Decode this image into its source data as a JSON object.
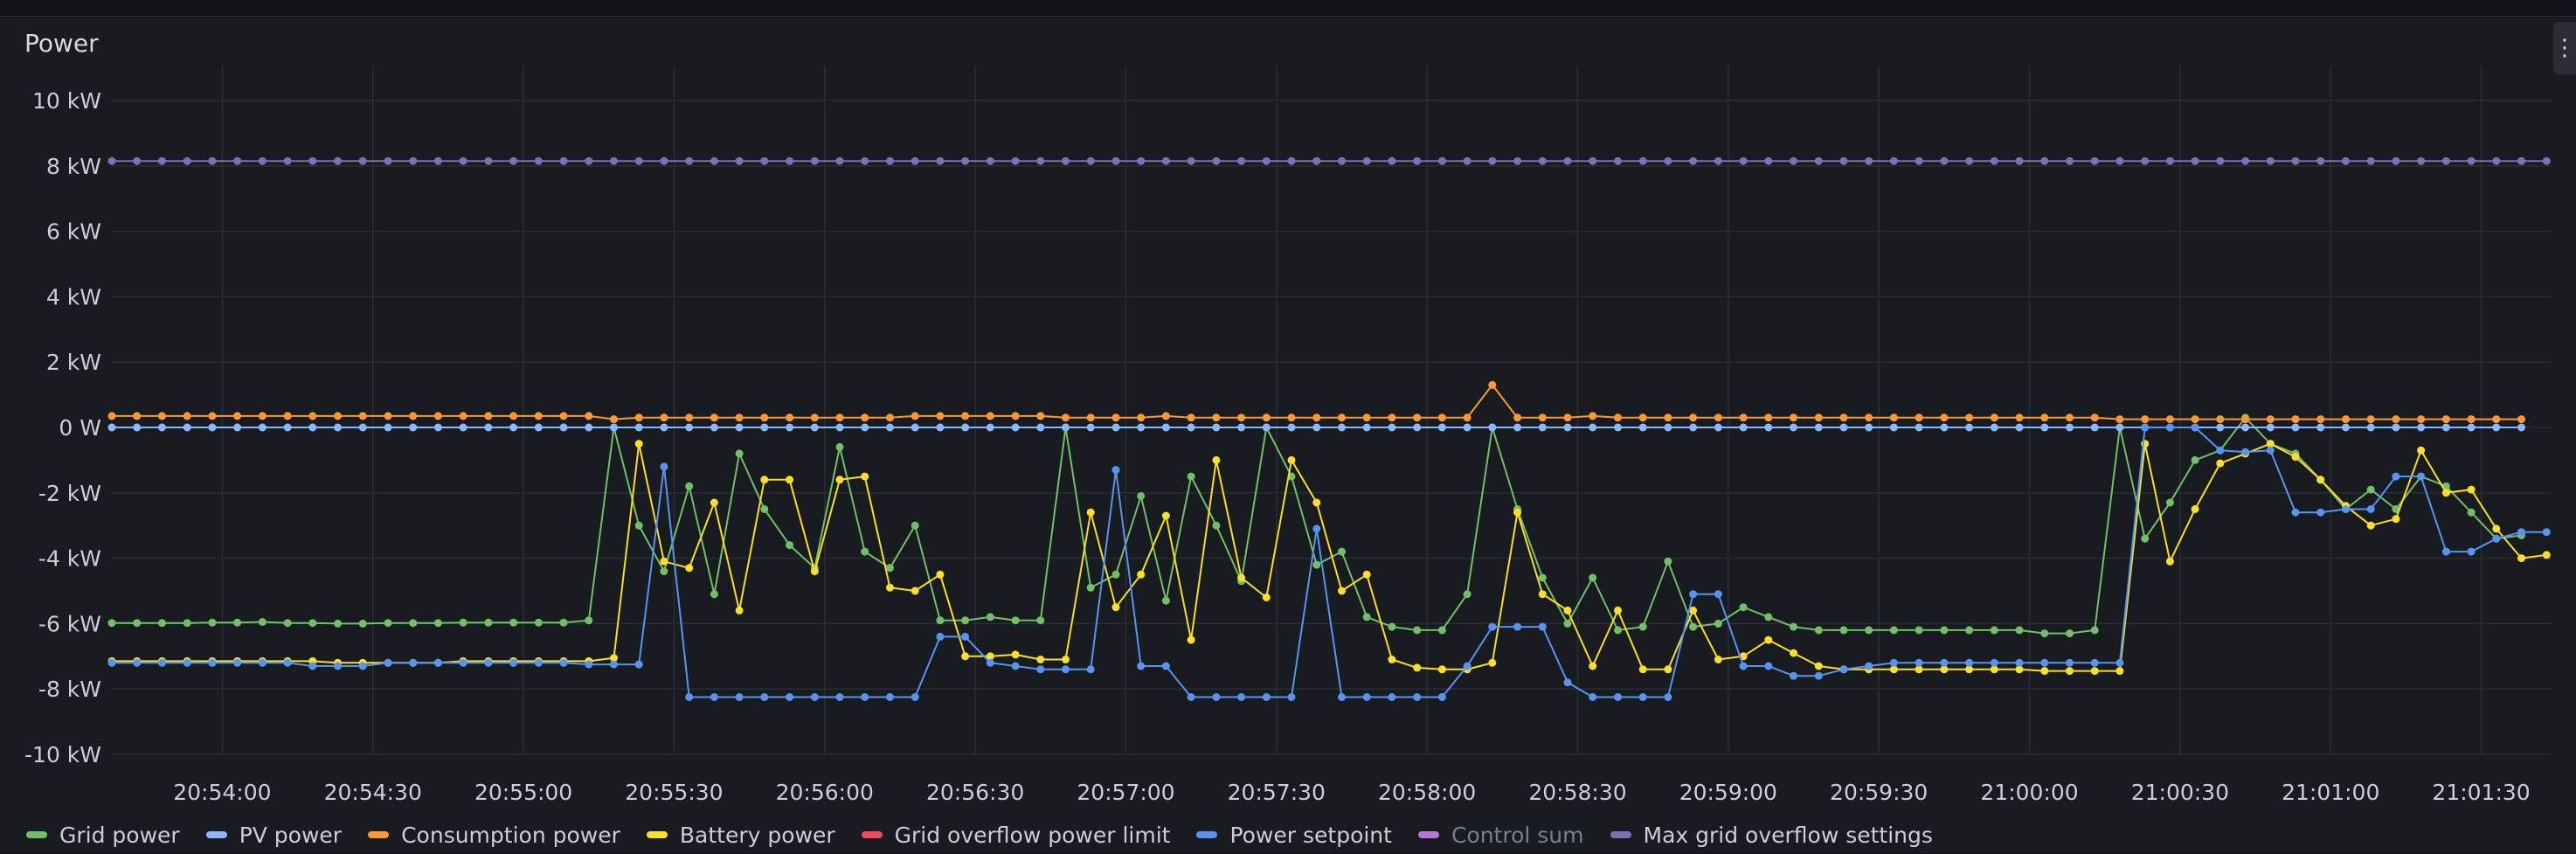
{
  "panel": {
    "title": "Power",
    "menu_icon": "vertical-ellipsis-icon"
  },
  "colors": {
    "background": "#181b1f",
    "grid": "#2a2d33",
    "tick_text": "#ccccdc"
  },
  "chart_data": {
    "type": "line",
    "title": "Power",
    "xlabel": "",
    "ylabel": "",
    "y_unit": "kW",
    "ylim": [
      -10,
      10
    ],
    "y_ticks": [
      10,
      8,
      6,
      4,
      2,
      0,
      -2,
      -4,
      -6,
      -8,
      -10
    ],
    "y_tick_labels": [
      "10 kW",
      "8 kW",
      "6 kW",
      "4 kW",
      "2 kW",
      "0 W",
      "-2 kW",
      "-4 kW",
      "-6 kW",
      "-8 kW",
      "-10 kW"
    ],
    "xlim": [
      "20:53:38",
      "21:01:44"
    ],
    "x_ticks": [
      "20:54:00",
      "20:54:30",
      "20:55:00",
      "20:55:30",
      "20:56:00",
      "20:56:30",
      "20:57:00",
      "20:57:30",
      "20:58:00",
      "20:58:30",
      "20:59:00",
      "20:59:30",
      "21:00:00",
      "21:00:30",
      "21:01:00",
      "21:01:30"
    ],
    "x_tick_labels": [
      "20:54:00",
      "20:54:30",
      "20:55:00",
      "20:55:30",
      "20:56:00",
      "20:56:30",
      "20:57:00",
      "20:57:30",
      "20:58:00",
      "20:58:30",
      "20:59:00",
      "20:59:30",
      "21:00:00",
      "21:00:30",
      "21:01:00",
      "21:01:30"
    ],
    "x_start": "20:53:38",
    "x_step_seconds": 5,
    "grid": true,
    "legend_position": "bottom",
    "series": [
      {
        "name": "Grid power",
        "color": "#73bf69",
        "visible": true,
        "values": [
          -5.98,
          -5.98,
          -5.98,
          -5.98,
          -5.97,
          -5.97,
          -5.95,
          -5.98,
          -5.98,
          -6.0,
          -6.0,
          -5.98,
          -5.98,
          -5.98,
          -5.97,
          -5.97,
          -5.97,
          -5.97,
          -5.97,
          -5.9,
          0.0,
          -3.0,
          -4.4,
          -1.8,
          -5.1,
          -0.8,
          -2.5,
          -3.6,
          -4.3,
          -0.6,
          -3.8,
          -4.3,
          -3.0,
          -5.9,
          -5.9,
          -5.8,
          -5.9,
          -5.9,
          0.0,
          -4.9,
          -4.5,
          -2.1,
          -5.3,
          -1.5,
          -3.0,
          -4.7,
          0.0,
          -1.5,
          -4.2,
          -3.8,
          -5.8,
          -6.1,
          -6.2,
          -6.2,
          -5.1,
          0.0,
          -2.5,
          -4.6,
          -6.0,
          -4.6,
          -6.2,
          -6.1,
          -4.1,
          -6.1,
          -6.0,
          -5.5,
          -5.8,
          -6.1,
          -6.2,
          -6.2,
          -6.2,
          -6.2,
          -6.2,
          -6.2,
          -6.2,
          -6.2,
          -6.2,
          -6.3,
          -6.3,
          -6.2,
          0.0,
          -3.4,
          -2.3,
          -1.0,
          -0.7,
          0.3,
          -0.5,
          -0.8,
          -1.6,
          -2.5,
          -1.9,
          -2.5,
          -1.5,
          -1.8,
          -2.6,
          -3.4,
          -3.3
        ]
      },
      {
        "name": "PV power",
        "color": "#8ab8ff",
        "visible": true,
        "values": [
          0.0,
          0.0,
          0.0,
          0.0,
          0.0,
          0.0,
          0.0,
          0.0,
          0.0,
          0.0,
          0.0,
          0.0,
          0.0,
          0.0,
          0.0,
          0.0,
          0.0,
          0.0,
          0.0,
          0.0,
          0.0,
          0.0,
          0.0,
          0.0,
          0.0,
          0.0,
          0.0,
          0.0,
          0.0,
          0.0,
          0.0,
          0.0,
          0.0,
          0.0,
          0.0,
          0.0,
          0.0,
          0.0,
          0.0,
          0.0,
          0.0,
          0.0,
          0.0,
          0.0,
          0.0,
          0.0,
          0.0,
          0.0,
          0.0,
          0.0,
          0.0,
          0.0,
          0.0,
          0.0,
          0.0,
          0.0,
          0.0,
          0.0,
          0.0,
          0.0,
          0.0,
          0.0,
          0.0,
          0.0,
          0.0,
          0.0,
          0.0,
          0.0,
          0.0,
          0.0,
          0.0,
          0.0,
          0.0,
          0.0,
          0.0,
          0.0,
          0.0,
          0.0,
          0.0,
          0.0,
          0.0,
          0.0,
          0.0,
          0.0,
          0.0,
          0.0,
          0.0,
          0.0,
          0.0,
          0.0,
          0.0,
          0.0,
          0.0,
          0.0,
          0.0,
          0.0,
          0.0
        ]
      },
      {
        "name": "Consumption power",
        "color": "#ff9830",
        "visible": true,
        "values": [
          0.35,
          0.35,
          0.35,
          0.35,
          0.35,
          0.35,
          0.35,
          0.35,
          0.35,
          0.35,
          0.35,
          0.35,
          0.35,
          0.35,
          0.35,
          0.35,
          0.35,
          0.35,
          0.35,
          0.35,
          0.25,
          0.3,
          0.3,
          0.3,
          0.3,
          0.3,
          0.3,
          0.3,
          0.3,
          0.3,
          0.3,
          0.3,
          0.35,
          0.35,
          0.35,
          0.35,
          0.35,
          0.35,
          0.3,
          0.3,
          0.3,
          0.3,
          0.35,
          0.3,
          0.3,
          0.3,
          0.3,
          0.3,
          0.3,
          0.3,
          0.3,
          0.3,
          0.3,
          0.3,
          0.3,
          1.3,
          0.3,
          0.3,
          0.3,
          0.35,
          0.3,
          0.3,
          0.3,
          0.3,
          0.3,
          0.3,
          0.3,
          0.3,
          0.3,
          0.3,
          0.3,
          0.3,
          0.3,
          0.3,
          0.3,
          0.3,
          0.3,
          0.3,
          0.3,
          0.3,
          0.25,
          0.25,
          0.25,
          0.25,
          0.25,
          0.25,
          0.25,
          0.25,
          0.25,
          0.25,
          0.25,
          0.25,
          0.25,
          0.25,
          0.25,
          0.25,
          0.25
        ]
      },
      {
        "name": "Battery power",
        "color": "#fade2a",
        "visible": true,
        "values": [
          -7.15,
          -7.15,
          -7.15,
          -7.15,
          -7.15,
          -7.15,
          -7.15,
          -7.15,
          -7.15,
          -7.2,
          -7.2,
          -7.2,
          -7.2,
          -7.2,
          -7.15,
          -7.15,
          -7.15,
          -7.15,
          -7.15,
          -7.15,
          -7.05,
          -0.5,
          -4.1,
          -4.3,
          -2.3,
          -5.6,
          -1.6,
          -1.6,
          -4.4,
          -1.6,
          -1.5,
          -4.9,
          -5.0,
          -4.5,
          -7.0,
          -7.0,
          -6.95,
          -7.1,
          -7.1,
          -2.6,
          -5.5,
          -4.5,
          -2.7,
          -6.5,
          -1.0,
          -4.6,
          -5.2,
          -1.0,
          -2.3,
          -5.0,
          -4.5,
          -7.1,
          -7.35,
          -7.4,
          -7.4,
          -7.2,
          -2.6,
          -5.1,
          -5.6,
          -7.3,
          -5.6,
          -7.4,
          -7.4,
          -5.6,
          -7.1,
          -7.0,
          -6.5,
          -6.9,
          -7.3,
          -7.4,
          -7.4,
          -7.4,
          -7.4,
          -7.4,
          -7.4,
          -7.4,
          -7.4,
          -7.45,
          -7.45,
          -7.45,
          -7.45,
          -0.5,
          -4.1,
          -2.5,
          -1.1,
          -0.8,
          -0.5,
          -0.9,
          -1.6,
          -2.4,
          -3.0,
          -2.8,
          -0.7,
          -2.0,
          -1.9,
          -3.1,
          -4.0,
          -3.9
        ]
      },
      {
        "name": "Grid overflow power limit",
        "color": "#f2495c",
        "visible": false,
        "values": []
      },
      {
        "name": "Power setpoint",
        "color": "#5794f2",
        "visible": true,
        "values": [
          -7.2,
          -7.2,
          -7.2,
          -7.2,
          -7.2,
          -7.2,
          -7.2,
          -7.2,
          -7.3,
          -7.3,
          -7.3,
          -7.2,
          -7.2,
          -7.2,
          -7.2,
          -7.2,
          -7.2,
          -7.2,
          -7.2,
          -7.25,
          -7.25,
          -7.25,
          -1.2,
          -8.25,
          -8.25,
          -8.25,
          -8.25,
          -8.25,
          -8.25,
          -8.25,
          -8.25,
          -8.25,
          -8.25,
          -6.4,
          -6.4,
          -7.2,
          -7.3,
          -7.4,
          -7.4,
          -7.4,
          -1.3,
          -7.3,
          -7.3,
          -8.25,
          -8.25,
          -8.25,
          -8.25,
          -8.25,
          -3.1,
          -8.25,
          -8.25,
          -8.25,
          -8.25,
          -8.25,
          -7.3,
          -6.1,
          -6.1,
          -6.1,
          -7.8,
          -8.25,
          -8.25,
          -8.25,
          -8.25,
          -5.1,
          -5.1,
          -7.3,
          -7.3,
          -7.6,
          -7.6,
          -7.4,
          -7.3,
          -7.2,
          -7.2,
          -7.2,
          -7.2,
          -7.2,
          -7.2,
          -7.2,
          -7.2,
          -7.2,
          -7.2,
          0.0,
          0.0,
          0.0,
          -0.7,
          -0.75,
          -0.7,
          -2.6,
          -2.6,
          -2.5,
          -2.5,
          -1.5,
          -1.5,
          -3.8,
          -3.8,
          -3.4,
          -3.2,
          -3.2
        ]
      },
      {
        "name": "Control sum",
        "color": "#b877d9",
        "visible": false,
        "values": []
      },
      {
        "name": "Max grid overflow settings",
        "color": "#806eb7",
        "visible": true,
        "values": [
          8.15,
          8.15,
          8.15,
          8.15,
          8.15,
          8.15,
          8.15,
          8.15,
          8.15,
          8.15,
          8.15,
          8.15,
          8.15,
          8.15,
          8.15,
          8.15,
          8.15,
          8.15,
          8.15,
          8.15,
          8.15,
          8.15,
          8.15,
          8.15,
          8.15,
          8.15,
          8.15,
          8.15,
          8.15,
          8.15,
          8.15,
          8.15,
          8.15,
          8.15,
          8.15,
          8.15,
          8.15,
          8.15,
          8.15,
          8.15,
          8.15,
          8.15,
          8.15,
          8.15,
          8.15,
          8.15,
          8.15,
          8.15,
          8.15,
          8.15,
          8.15,
          8.15,
          8.15,
          8.15,
          8.15,
          8.15,
          8.15,
          8.15,
          8.15,
          8.15,
          8.15,
          8.15,
          8.15,
          8.15,
          8.15,
          8.15,
          8.15,
          8.15,
          8.15,
          8.15,
          8.15,
          8.15,
          8.15,
          8.15,
          8.15,
          8.15,
          8.15,
          8.15,
          8.15,
          8.15,
          8.15,
          8.15,
          8.15,
          8.15,
          8.15,
          8.15,
          8.15,
          8.15,
          8.15,
          8.15,
          8.15,
          8.15,
          8.15,
          8.15,
          8.15,
          8.15,
          8.15,
          8.15
        ]
      }
    ]
  },
  "legend": [
    {
      "label": "Grid power",
      "color": "#73bf69",
      "hidden": false
    },
    {
      "label": "PV power",
      "color": "#8ab8ff",
      "hidden": false
    },
    {
      "label": "Consumption power",
      "color": "#ff9830",
      "hidden": false
    },
    {
      "label": "Battery power",
      "color": "#fade2a",
      "hidden": false
    },
    {
      "label": "Grid overflow power limit",
      "color": "#f2495c",
      "hidden": false
    },
    {
      "label": "Power setpoint",
      "color": "#5794f2",
      "hidden": false
    },
    {
      "label": "Control sum",
      "color": "#b877d9",
      "hidden": true
    },
    {
      "label": "Max grid overflow settings",
      "color": "#806eb7",
      "hidden": false
    }
  ]
}
